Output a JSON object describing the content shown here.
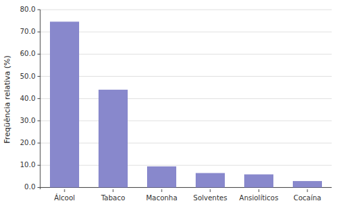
{
  "chart_data": {
    "type": "bar",
    "categories": [
      "Álcool",
      "Tabaco",
      "Maconha",
      "Solventes",
      "Ansiolíticos",
      "Cocaína"
    ],
    "values": [
      74.6,
      44.0,
      9.5,
      6.5,
      5.9,
      2.9
    ],
    "color": "#8888cc",
    "ylabel": "Freqüência relativa (%)",
    "ylim": [
      -0.8,
      80
    ],
    "yticks": [
      {
        "value": 0,
        "label": "0.0"
      },
      {
        "value": 10,
        "label": "10.0"
      },
      {
        "value": 20,
        "label": "20.0"
      },
      {
        "value": 30,
        "label": "30.0"
      },
      {
        "value": 40,
        "label": "40.0"
      },
      {
        "value": 50,
        "label": "50.0"
      },
      {
        "value": 60,
        "label": "60.0"
      },
      {
        "value": 70,
        "label": "70.0"
      },
      {
        "value": 80,
        "label": "80.0"
      }
    ],
    "grid": true
  }
}
